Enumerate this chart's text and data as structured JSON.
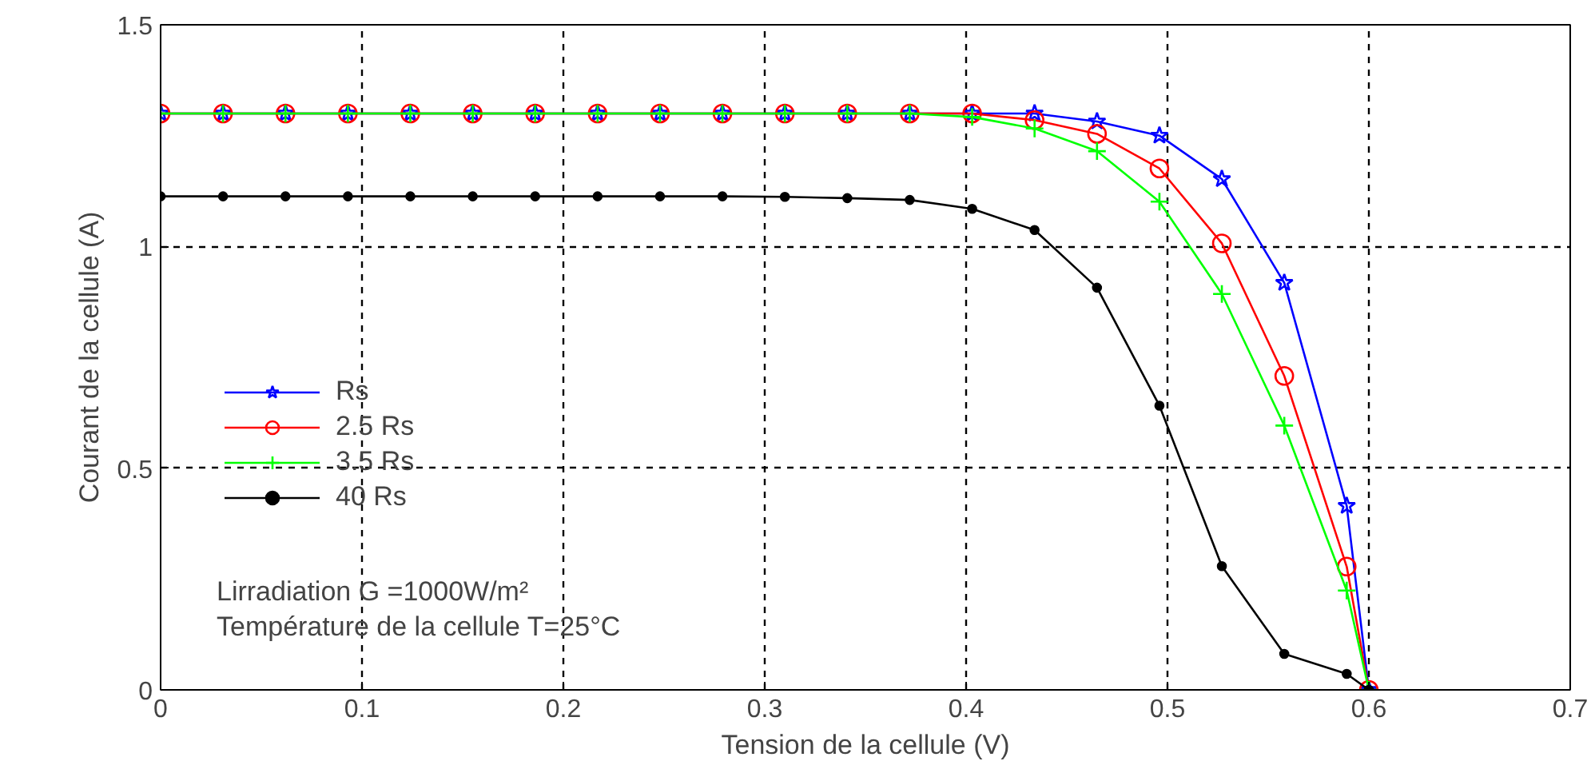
{
  "chart_data": {
    "type": "line",
    "xlabel": "Tension de la cellule (V)",
    "ylabel": "Courant de la cellule (A)",
    "x": [
      0,
      0.031,
      0.062,
      0.093,
      0.124,
      0.155,
      0.186,
      0.217,
      0.248,
      0.279,
      0.31,
      0.341,
      0.372,
      0.403,
      0.434,
      0.465,
      0.496,
      0.527,
      0.558,
      0.589,
      0.6
    ],
    "series": [
      {
        "name": "Rs",
        "color": "#0000ff",
        "marker": "star",
        "values": [
          1.3,
          1.3,
          1.3,
          1.3,
          1.3,
          1.3,
          1.3,
          1.3,
          1.3,
          1.3,
          1.3,
          1.3,
          1.3,
          1.3,
          1.3,
          1.282,
          1.25,
          1.152,
          0.918,
          0.415,
          0
        ]
      },
      {
        "name": "2.5 Rs",
        "color": "#ff0000",
        "marker": "circle",
        "values": [
          1.3,
          1.3,
          1.3,
          1.3,
          1.3,
          1.3,
          1.3,
          1.3,
          1.3,
          1.3,
          1.3,
          1.3,
          1.3,
          1.3,
          1.285,
          1.254,
          1.176,
          1.007,
          0.708,
          0.278,
          0
        ]
      },
      {
        "name": "3.5 Rs",
        "color": "#00ff00",
        "marker": "cross",
        "values": [
          1.3,
          1.3,
          1.3,
          1.3,
          1.3,
          1.3,
          1.3,
          1.3,
          1.3,
          1.3,
          1.3,
          1.3,
          1.3,
          1.292,
          1.266,
          1.215,
          1.101,
          0.893,
          0.596,
          0.224,
          0
        ]
      },
      {
        "name": "40 Rs",
        "color": "#000000",
        "marker": "circle",
        "values": [
          1.113,
          1.113,
          1.113,
          1.113,
          1.113,
          1.113,
          1.113,
          1.113,
          1.113,
          1.113,
          1.112,
          1.109,
          1.105,
          1.085,
          1.037,
          0.907,
          0.641,
          0.279,
          0.081,
          0.036,
          0
        ]
      }
    ],
    "xlim": [
      0,
      0.7
    ],
    "xticks": [
      0,
      0.1,
      0.2,
      0.3,
      0.4,
      0.5,
      0.6,
      0.7
    ],
    "ylim": [
      0,
      1.5
    ],
    "yticks": [
      0,
      0.5,
      1,
      1.5
    ],
    "grid": true,
    "legend": "left",
    "line_style": "solid",
    "annotations": [
      "Lirradiation G =1000W/m²",
      "Température de la cellule  T=25°C"
    ]
  }
}
